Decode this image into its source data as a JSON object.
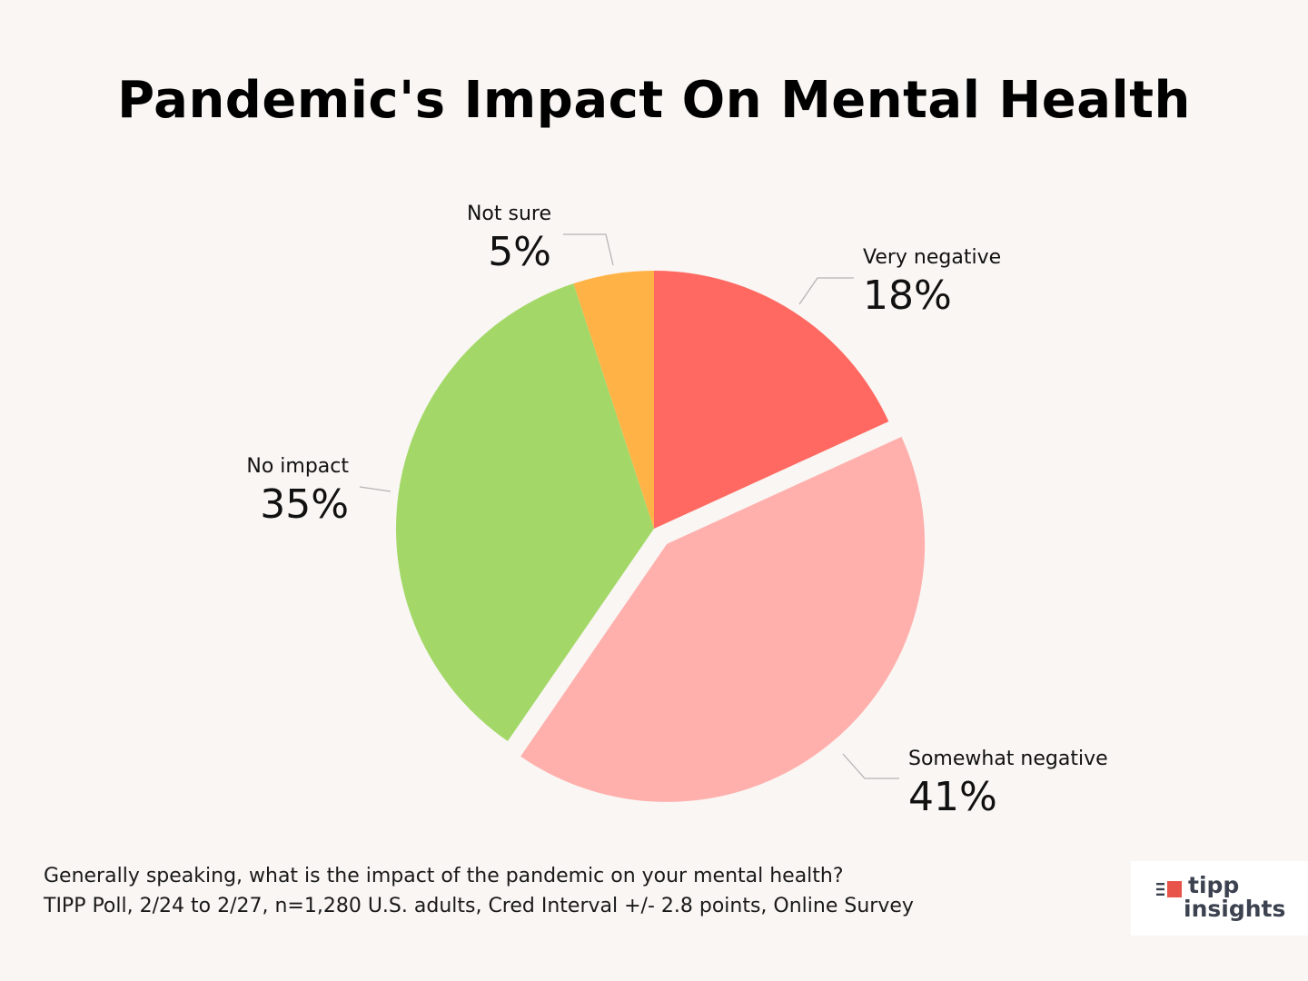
{
  "chart_data": {
    "type": "pie",
    "title": "Pandemic's Impact On Mental Health",
    "slices": [
      {
        "label": "Very negative",
        "value": 18,
        "display": "18%",
        "color": "#ff6961"
      },
      {
        "label": "Somewhat negative",
        "value": 41,
        "display": "41%",
        "color": "#ffb0ad",
        "exploded": true
      },
      {
        "label": "No impact",
        "value": 35,
        "display": "35%",
        "color": "#a3d868"
      },
      {
        "label": "Not sure",
        "value": 5,
        "display": "5%",
        "color": "#ffb347"
      }
    ],
    "start": "12 o'clock",
    "direction": "clockwise",
    "legend": "none (direct labels)"
  },
  "footer": {
    "question": "Generally speaking, what is the impact of the pandemic on your mental health?",
    "source": "TIPP Poll, 2/24 to 2/27, n=1,280 U.S. adults, Cred Interval +/- 2.8 points, Online Survey"
  },
  "logo": {
    "line1": "tipp",
    "line2": "insights",
    "accent_color": "#e8534a",
    "text_color": "#3c4250"
  }
}
